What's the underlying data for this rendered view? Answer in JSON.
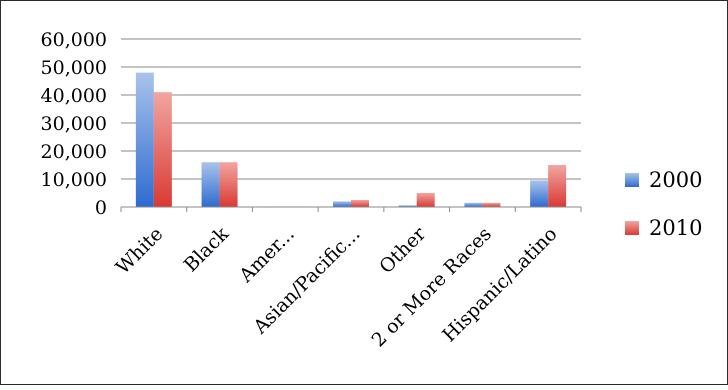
{
  "chart_data": {
    "type": "bar",
    "categories": [
      "White",
      "Black",
      "Amer...",
      "Asian/Pacific...",
      "Other",
      "2 or More Races",
      "Hispanic/Latino"
    ],
    "series": [
      {
        "name": "2000",
        "values": [
          48000,
          16000,
          200,
          2000,
          600,
          1500,
          9500
        ],
        "color": "#4f81bd"
      },
      {
        "name": "2010",
        "values": [
          41000,
          16000,
          200,
          2500,
          5000,
          1500,
          15000
        ],
        "color": "#e0504d"
      }
    ],
    "yticks": [
      "0",
      "10,000",
      "20,000",
      "30,000",
      "40,000",
      "50,000",
      "60,000"
    ],
    "ylim": [
      0,
      60000
    ],
    "grid": true,
    "legend_position": "right"
  }
}
